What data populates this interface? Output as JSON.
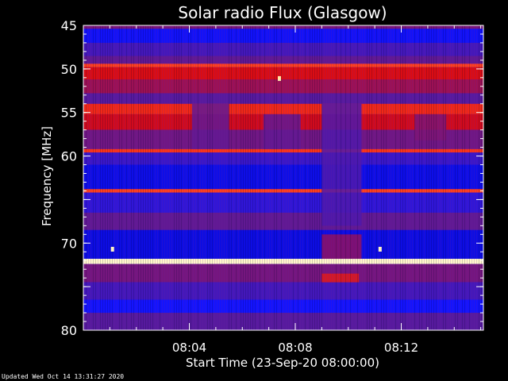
{
  "chart_data": {
    "type": "heatmap",
    "title": "Solar radio Flux (Glasgow)",
    "xlabel": "Start Time (23-Sep-20 08:00:00)",
    "ylabel": "Frequency [MHz]",
    "x_unit": "minutes after 08:00:00",
    "xlim": [
      0,
      15.1
    ],
    "ylim": [
      45,
      80
    ],
    "y_inverted": true,
    "x_ticks": [
      {
        "value": 4,
        "label": "08:04"
      },
      {
        "value": 8,
        "label": "08:08"
      },
      {
        "value": 12,
        "label": "08:12"
      }
    ],
    "y_ticks": [
      {
        "value": 45,
        "label": "45"
      },
      {
        "value": 50,
        "label": "50"
      },
      {
        "value": 55,
        "label": "55"
      },
      {
        "value": 60,
        "label": "60"
      },
      {
        "value": 65,
        "label": ""
      },
      {
        "value": 70,
        "label": "70"
      },
      {
        "value": 75,
        "label": ""
      },
      {
        "value": 80,
        "label": "80"
      }
    ],
    "colormap": [
      "#0000b0",
      "#1414ff",
      "#5a1a9a",
      "#a01050",
      "#d80a14",
      "#ff3a1a",
      "#ffd27a",
      "#ffffe0"
    ],
    "bands": [
      {
        "from": 45.0,
        "to": 45.4,
        "level": 0.35
      },
      {
        "from": 45.4,
        "to": 47.0,
        "level": 0.13
      },
      {
        "from": 47.0,
        "to": 48.5,
        "level": 0.24
      },
      {
        "from": 48.5,
        "to": 49.4,
        "level": 0.3
      },
      {
        "from": 49.4,
        "to": 49.8,
        "level": 0.72
      },
      {
        "from": 49.8,
        "to": 51.2,
        "level": 0.58
      },
      {
        "from": 51.2,
        "to": 52.8,
        "level": 0.42
      },
      {
        "from": 52.8,
        "to": 54.0,
        "level": 0.28
      },
      {
        "from": 54.0,
        "to": 55.2,
        "level": 0.66
      },
      {
        "from": 55.2,
        "to": 57.0,
        "level": 0.55
      },
      {
        "from": 57.0,
        "to": 59.2,
        "level": 0.33
      },
      {
        "from": 59.2,
        "to": 59.6,
        "level": 0.7
      },
      {
        "from": 59.6,
        "to": 61.0,
        "level": 0.22
      },
      {
        "from": 61.0,
        "to": 63.8,
        "level": 0.1
      },
      {
        "from": 63.8,
        "to": 64.2,
        "level": 0.72
      },
      {
        "from": 64.2,
        "to": 66.5,
        "level": 0.2
      },
      {
        "from": 66.5,
        "to": 68.5,
        "level": 0.3
      },
      {
        "from": 68.5,
        "to": 71.8,
        "level": 0.09
      },
      {
        "from": 71.8,
        "to": 72.4,
        "level": 0.97
      },
      {
        "from": 72.4,
        "to": 74.5,
        "level": 0.34
      },
      {
        "from": 74.5,
        "to": 76.5,
        "level": 0.24
      },
      {
        "from": 76.5,
        "to": 78.0,
        "level": 0.14
      },
      {
        "from": 78.0,
        "to": 80.0,
        "level": 0.28
      }
    ],
    "features": [
      {
        "x_from": 4.1,
        "x_to": 5.5,
        "y_from": 54.0,
        "y_to": 59.2,
        "level": 0.3
      },
      {
        "x_from": 6.8,
        "x_to": 8.2,
        "y_from": 55.2,
        "y_to": 59.2,
        "level": 0.3
      },
      {
        "x_from": 9.0,
        "x_to": 10.5,
        "y_from": 54.0,
        "y_to": 68.0,
        "level": 0.26
      },
      {
        "x_from": 9.0,
        "x_to": 10.5,
        "y_from": 69.0,
        "y_to": 71.8,
        "level": 0.4
      },
      {
        "x_from": 9.0,
        "x_to": 10.4,
        "y_from": 73.5,
        "y_to": 74.5,
        "level": 0.62
      },
      {
        "x_from": 12.5,
        "x_to": 13.7,
        "y_from": 55.2,
        "y_to": 58.2,
        "level": 0.36
      }
    ],
    "bursts": [
      {
        "x": 7.4,
        "y": 51.1,
        "level": 0.92
      },
      {
        "x": 1.1,
        "y": 70.7,
        "level": 0.96
      },
      {
        "x": 11.2,
        "y": 70.7,
        "level": 0.96
      }
    ]
  },
  "footer": "Updated Wed Oct 14 13:31:27 2020"
}
